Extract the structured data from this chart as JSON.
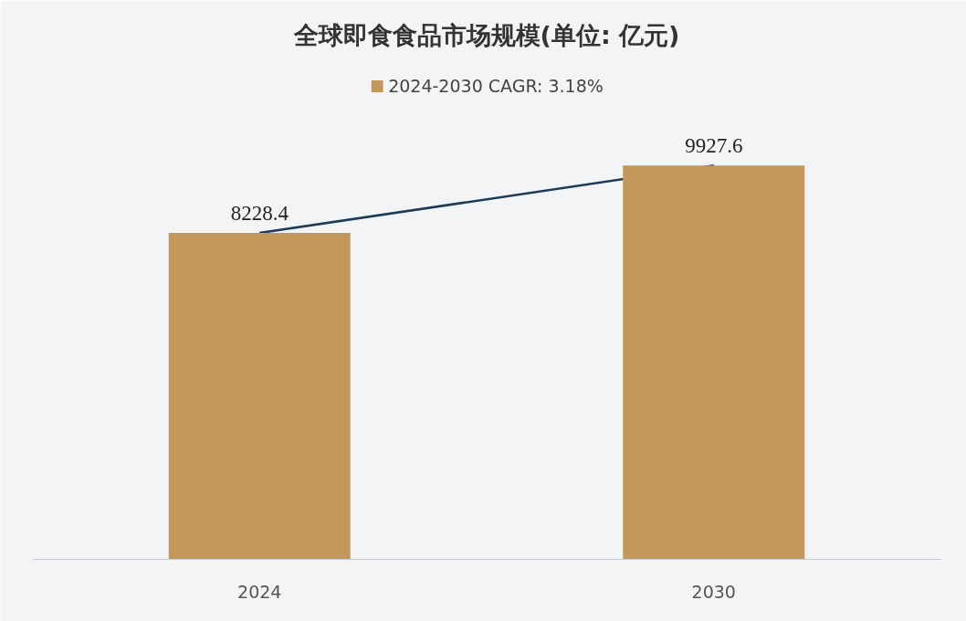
{
  "chart_data": {
    "type": "bar",
    "title": "全球即食食品市场规模(单位: 亿元)",
    "categories": [
      "2024",
      "2030"
    ],
    "series": [
      {
        "name": "2024-2030 CAGR: 3.18%",
        "color": "#c4975a",
        "values": [
          8228.4,
          9927.6
        ],
        "value_labels": [
          "8228.4",
          "9927.6"
        ]
      },
      {
        "type": "line",
        "color": "#1d3a56",
        "values": [
          8228.4,
          9927.6
        ]
      }
    ],
    "legend": "top",
    "grid": false,
    "tick_labels": "x"
  }
}
